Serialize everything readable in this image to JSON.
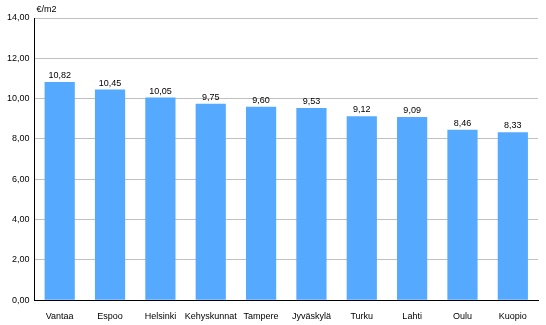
{
  "chart_data": {
    "type": "bar",
    "y_label": "€/m2",
    "categories": [
      "Vantaa",
      "Espoo",
      "Helsinki",
      "Kehyskunnat",
      "Tampere",
      "Jyväskylä",
      "Turku",
      "Lahti",
      "Oulu",
      "Kuopio"
    ],
    "values": [
      10.82,
      10.45,
      10.05,
      9.75,
      9.6,
      9.53,
      9.12,
      9.09,
      8.46,
      8.33
    ],
    "value_labels": [
      "10,82",
      "10,45",
      "10,05",
      "9,75",
      "9,60",
      "9,53",
      "9,12",
      "9,09",
      "8,46",
      "8,33"
    ],
    "data_labels": true,
    "color": "#55aaff",
    "ylim": [
      0,
      14
    ],
    "yticks": [
      {
        "value": 0,
        "label": "0,00"
      },
      {
        "value": 2,
        "label": "2,00"
      },
      {
        "value": 4,
        "label": "4,00"
      },
      {
        "value": 6,
        "label": "6,00"
      },
      {
        "value": 8,
        "label": "8,00"
      },
      {
        "value": 10,
        "label": "10,00"
      },
      {
        "value": 12,
        "label": "12,00"
      },
      {
        "value": 14,
        "label": "14,00"
      }
    ],
    "grid": true
  }
}
